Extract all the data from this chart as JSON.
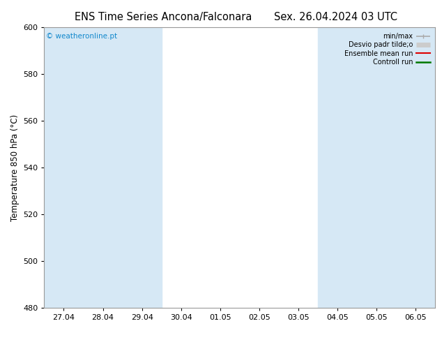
{
  "title_left": "ENS Time Series Ancona/Falconara",
  "title_right": "Sex. 26.04.2024 03 UTC",
  "ylabel": "Temperature 850 hPa (°C)",
  "watermark": "© weatheronline.pt",
  "ylim": [
    480,
    600
  ],
  "yticks": [
    480,
    500,
    520,
    540,
    560,
    580,
    600
  ],
  "x_labels": [
    "27.04",
    "28.04",
    "29.04",
    "30.04",
    "01.05",
    "02.05",
    "03.05",
    "04.05",
    "05.05",
    "06.05"
  ],
  "x_values": [
    0,
    1,
    2,
    3,
    4,
    5,
    6,
    7,
    8,
    9
  ],
  "shaded_indices": [
    0,
    1,
    2,
    7,
    8,
    9
  ],
  "shaded_color": "#d6e8f5",
  "bg_color": "#ffffff",
  "plot_bg_color": "#ffffff",
  "legend_labels": [
    "min/max",
    "Desvio padr tilde;o",
    "Ensemble mean run",
    "Controll run"
  ],
  "legend_colors": [
    "#aaaaaa",
    "#cccccc",
    "#dd0000",
    "#007700"
  ],
  "legend_lws": [
    1.2,
    5,
    1.5,
    1.8
  ],
  "title_fontsize": 10.5,
  "tick_fontsize": 8,
  "ylabel_fontsize": 8.5,
  "watermark_color": "#1188cc",
  "border_color": "#999999",
  "border_lw": 0.8
}
